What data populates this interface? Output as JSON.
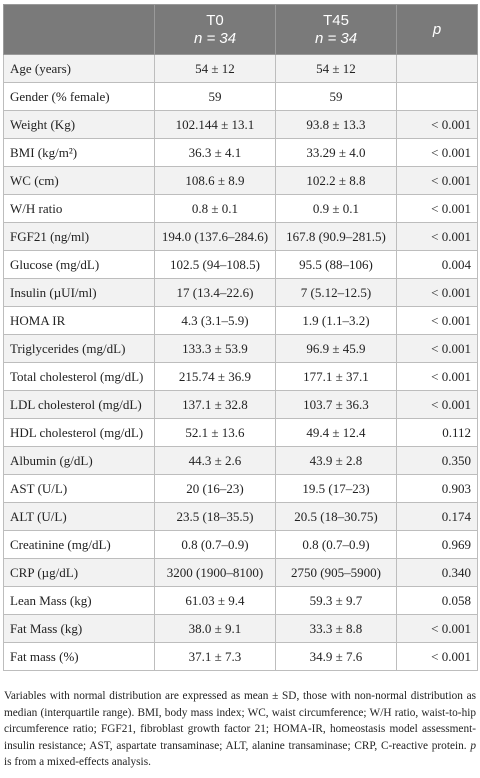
{
  "header": {
    "col1": "",
    "t0_label": "T0",
    "t0_n": "n = 34",
    "t45_label": "T45",
    "t45_n": "n = 34",
    "p_label": "p"
  },
  "rows": [
    {
      "label": "Age (years)",
      "t0": "54 ± 12",
      "t45": "54 ± 12",
      "p": ""
    },
    {
      "label": "Gender (% female)",
      "t0": "59",
      "t45": "59",
      "p": ""
    },
    {
      "label": "Weight (Kg)",
      "t0": "102.144 ± 13.1",
      "t45": "93.8 ± 13.3",
      "p": "< 0.001"
    },
    {
      "label": "BMI (kg/m²)",
      "t0": "36.3 ± 4.1",
      "t45": "33.29 ± 4.0",
      "p": "< 0.001"
    },
    {
      "label": "WC (cm)",
      "t0": "108.6 ± 8.9",
      "t45": "102.2 ± 8.8",
      "p": "< 0.001"
    },
    {
      "label": "W/H ratio",
      "t0": "0.8 ± 0.1",
      "t45": "0.9 ± 0.1",
      "p": "< 0.001"
    },
    {
      "label": "FGF21 (ng/ml)",
      "t0": "194.0 (137.6–284.6)",
      "t45": "167.8 (90.9–281.5)",
      "p": "< 0.001"
    },
    {
      "label": "Glucose (mg/dL)",
      "t0": "102.5 (94–108.5)",
      "t45": "95.5 (88–106)",
      "p": "0.004"
    },
    {
      "label": "Insulin (µUI/ml)",
      "t0": "17 (13.4–22.6)",
      "t45": "7 (5.12–12.5)",
      "p": "< 0.001"
    },
    {
      "label": "HOMA IR",
      "t0": "4.3 (3.1–5.9)",
      "t45": "1.9 (1.1–3.2)",
      "p": "< 0.001"
    },
    {
      "label": "Triglycerides (mg/dL)",
      "t0": "133.3 ± 53.9",
      "t45": "96.9 ± 45.9",
      "p": "< 0.001"
    },
    {
      "label": "Total cholesterol (mg/dL)",
      "t0": "215.74 ± 36.9",
      "t45": "177.1 ± 37.1",
      "p": "< 0.001"
    },
    {
      "label": "LDL cholesterol (mg/dL)",
      "t0": "137.1 ± 32.8",
      "t45": "103.7 ± 36.3",
      "p": "< 0.001"
    },
    {
      "label": "HDL cholesterol (mg/dL)",
      "t0": "52.1 ± 13.6",
      "t45": "49.4 ± 12.4",
      "p": "0.112"
    },
    {
      "label": "Albumin (g/dL)",
      "t0": "44.3 ± 2.6",
      "t45": "43.9 ± 2.8",
      "p": "0.350"
    },
    {
      "label": "AST (U/L)",
      "t0": "20 (16–23)",
      "t45": "19.5 (17–23)",
      "p": "0.903"
    },
    {
      "label": "ALT (U/L)",
      "t0": "23.5 (18–35.5)",
      "t45": "20.5 (18–30.75)",
      "p": "0.174"
    },
    {
      "label": "Creatinine (mg/dL)",
      "t0": "0.8 (0.7–0.9)",
      "t45": "0.8 (0.7–0.9)",
      "p": "0.969"
    },
    {
      "label": "CRP (µg/dL)",
      "t0": "3200 (1900–8100)",
      "t45": "2750 (905–5900)",
      "p": "0.340"
    },
    {
      "label": "Lean Mass (kg)",
      "t0": "61.03 ± 9.4",
      "t45": "59.3 ± 9.7",
      "p": "0.058"
    },
    {
      "label": "Fat Mass (kg)",
      "t0": "38.0 ± 9.1",
      "t45": "33.3 ± 8.8",
      "p": "< 0.001"
    },
    {
      "label": "Fat mass (%)",
      "t0": "37.1 ± 7.3",
      "t45": "34.9 ± 7.6",
      "p": "< 0.001"
    }
  ],
  "footnote": {
    "text": "Variables with normal distribution are expressed as mean ± SD, those with non-normal distribution as median (interquartile range). BMI, body mass index; WC, waist circumference; W/H ratio, waist-to-hip circumference ratio; FGF21, fibroblast growth factor 21; HOMA-IR, homeostasis model assessment-insulin resistance; AST, aspartate transaminase; ALT, alanine transaminase; CRP, C-reactive protein.",
    "p_symbol": "p",
    "p_tail": " is from a mixed-effects analysis."
  },
  "colors": {
    "header_bg": "#7a7a7a",
    "header_text": "#ffffff",
    "row_stripe": "#f2f2f2",
    "border": "#bdbdbd"
  }
}
